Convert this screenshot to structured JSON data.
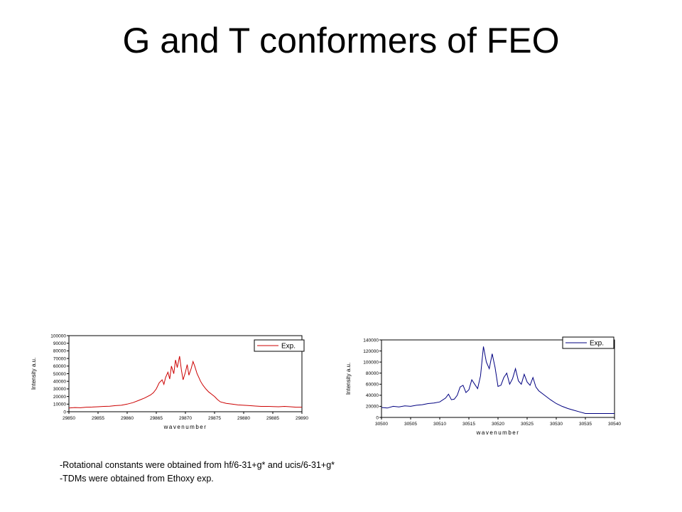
{
  "slide": {
    "title": "G and T conformers of FEO",
    "notes": [
      "-Rotational constants were obtained from hf/6-31+g* and ucis/6-31+g*",
      "-TDMs were obtained from Ethoxy exp."
    ]
  },
  "chart_data": [
    {
      "type": "line",
      "xlabel": "wavenumber",
      "ylabel": "Intensity a.u.",
      "xlim": [
        29850,
        29890
      ],
      "ylim": [
        0,
        100000
      ],
      "xticks": [
        29850,
        29855,
        29860,
        29865,
        29870,
        29875,
        29880,
        29885,
        29890
      ],
      "yticks": [
        0,
        10000,
        20000,
        30000,
        40000,
        50000,
        60000,
        70000,
        80000,
        90000,
        100000
      ],
      "grid": false,
      "legend_position": "top-right",
      "series": [
        {
          "name": "Exp.",
          "color": "#cc0000",
          "x": [
            29850,
            29851,
            29852,
            29853,
            29854,
            29855,
            29856,
            29857,
            29858,
            29859,
            29860,
            29861,
            29862,
            29863,
            29863.5,
            29864,
            29864.5,
            29865,
            29865.5,
            29866,
            29866.3,
            29866.6,
            29867,
            29867.3,
            29867.6,
            29868,
            29868.3,
            29868.6,
            29869,
            29869.3,
            29869.6,
            29870,
            29870.3,
            29870.6,
            29871,
            29871.3,
            29871.6,
            29872,
            29872.3,
            29872.6,
            29873,
            29873.5,
            29874,
            29874.5,
            29875,
            29875.5,
            29876,
            29877,
            29878,
            29879,
            29880,
            29881,
            29882,
            29883,
            29884,
            29885,
            29886,
            29887,
            29888,
            29889,
            29890
          ],
          "y": [
            5000,
            5500,
            5200,
            6000,
            6200,
            6500,
            7000,
            7200,
            8000,
            8500,
            10000,
            12000,
            15000,
            18000,
            20000,
            22000,
            25000,
            30000,
            38000,
            42000,
            36000,
            45000,
            52000,
            43000,
            60000,
            50000,
            68000,
            58000,
            73000,
            55000,
            42000,
            52000,
            62000,
            48000,
            57000,
            66000,
            60000,
            50000,
            45000,
            40000,
            35000,
            30000,
            26000,
            23000,
            20000,
            16000,
            13000,
            11000,
            10000,
            9000,
            8500,
            8000,
            7500,
            7000,
            7000,
            6800,
            6500,
            7000,
            6500,
            6000,
            6000
          ]
        }
      ]
    },
    {
      "type": "line",
      "xlabel": "wavenumber",
      "ylabel": "Intensity a.u.",
      "xlim": [
        30500,
        30540
      ],
      "ylim": [
        0,
        140000
      ],
      "xticks": [
        30500,
        30505,
        30510,
        30515,
        30520,
        30525,
        30530,
        30535,
        30540
      ],
      "yticks": [
        0,
        20000,
        40000,
        60000,
        80000,
        100000,
        120000,
        140000
      ],
      "grid": false,
      "legend_position": "top-right",
      "series": [
        {
          "name": "Exp.",
          "color": "#000080",
          "x": [
            30500,
            30501,
            30502,
            30503,
            30504,
            30505,
            30506,
            30507,
            30508,
            30509,
            30510,
            30511,
            30511.5,
            30512,
            30512.5,
            30513,
            30513.5,
            30514,
            30514.5,
            30515,
            30515.5,
            30516,
            30516.5,
            30517,
            30517.5,
            30518,
            30518.5,
            30519,
            30519.5,
            30520,
            30520.5,
            30521,
            30521.5,
            30522,
            30522.5,
            30523,
            30523.5,
            30524,
            30524.5,
            30525,
            30525.5,
            30526,
            30526.5,
            30527,
            30528,
            30529,
            30530,
            30531,
            30532,
            30533,
            30534,
            30535,
            30536,
            30537,
            30538,
            30539,
            30540
          ],
          "y": [
            18000,
            17000,
            20000,
            19000,
            21000,
            20000,
            22000,
            23000,
            25000,
            26000,
            28000,
            35000,
            42000,
            32000,
            33000,
            40000,
            55000,
            58000,
            45000,
            50000,
            68000,
            60000,
            52000,
            75000,
            128000,
            100000,
            88000,
            115000,
            90000,
            56000,
            58000,
            72000,
            80000,
            60000,
            70000,
            88000,
            66000,
            60000,
            78000,
            64000,
            58000,
            72000,
            55000,
            48000,
            40000,
            32000,
            25000,
            20000,
            16000,
            13000,
            10000,
            7000,
            7000,
            7000,
            7000,
            7000,
            7000
          ]
        }
      ]
    }
  ]
}
